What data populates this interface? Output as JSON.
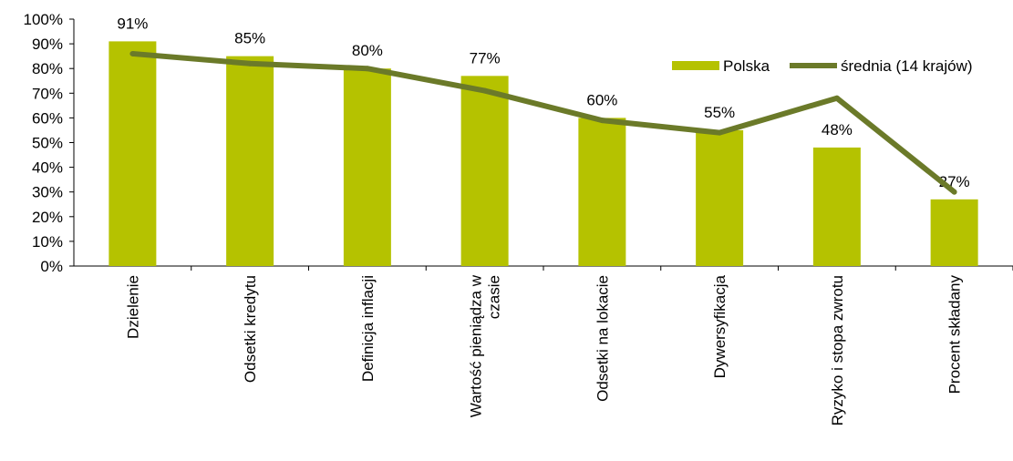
{
  "chart_data": {
    "type": "bar",
    "categories": [
      "Dzielenie",
      "Odsetki kredytu",
      "Definicja inflacji",
      "Wartość pieniądza w czasie",
      "Odsetki na lokacie",
      "Dywersyfikacja",
      "Ryzyko i stopa zwrotu",
      "Procent składany"
    ],
    "category_lines": [
      [
        "Dzielenie"
      ],
      [
        "Odsetki kredytu"
      ],
      [
        "Definicja inflacji"
      ],
      [
        "Wartość pieniądza w",
        "czasie"
      ],
      [
        "Odsetki na lokacie"
      ],
      [
        "Dywersyfikacja"
      ],
      [
        "Ryzyko i stopa zwrotu"
      ],
      [
        "Procent składany"
      ]
    ],
    "series": [
      {
        "name": "Polska",
        "type": "bar",
        "values": [
          91,
          85,
          80,
          77,
          60,
          55,
          48,
          27
        ],
        "data_labels": [
          "91%",
          "85%",
          "80%",
          "77%",
          "60%",
          "55%",
          "48%",
          "27%"
        ],
        "color": "#b5c200"
      },
      {
        "name": "średnia (14 krajów)",
        "type": "line",
        "values": [
          86,
          82,
          80,
          71,
          59,
          54,
          68,
          30
        ],
        "color": "#6b7a29"
      }
    ],
    "y_ticks": [
      "0%",
      "10%",
      "20%",
      "30%",
      "40%",
      "50%",
      "60%",
      "70%",
      "80%",
      "90%",
      "100%"
    ],
    "ylim": [
      0,
      100
    ],
    "grid": false,
    "legend_position": "top-right"
  }
}
